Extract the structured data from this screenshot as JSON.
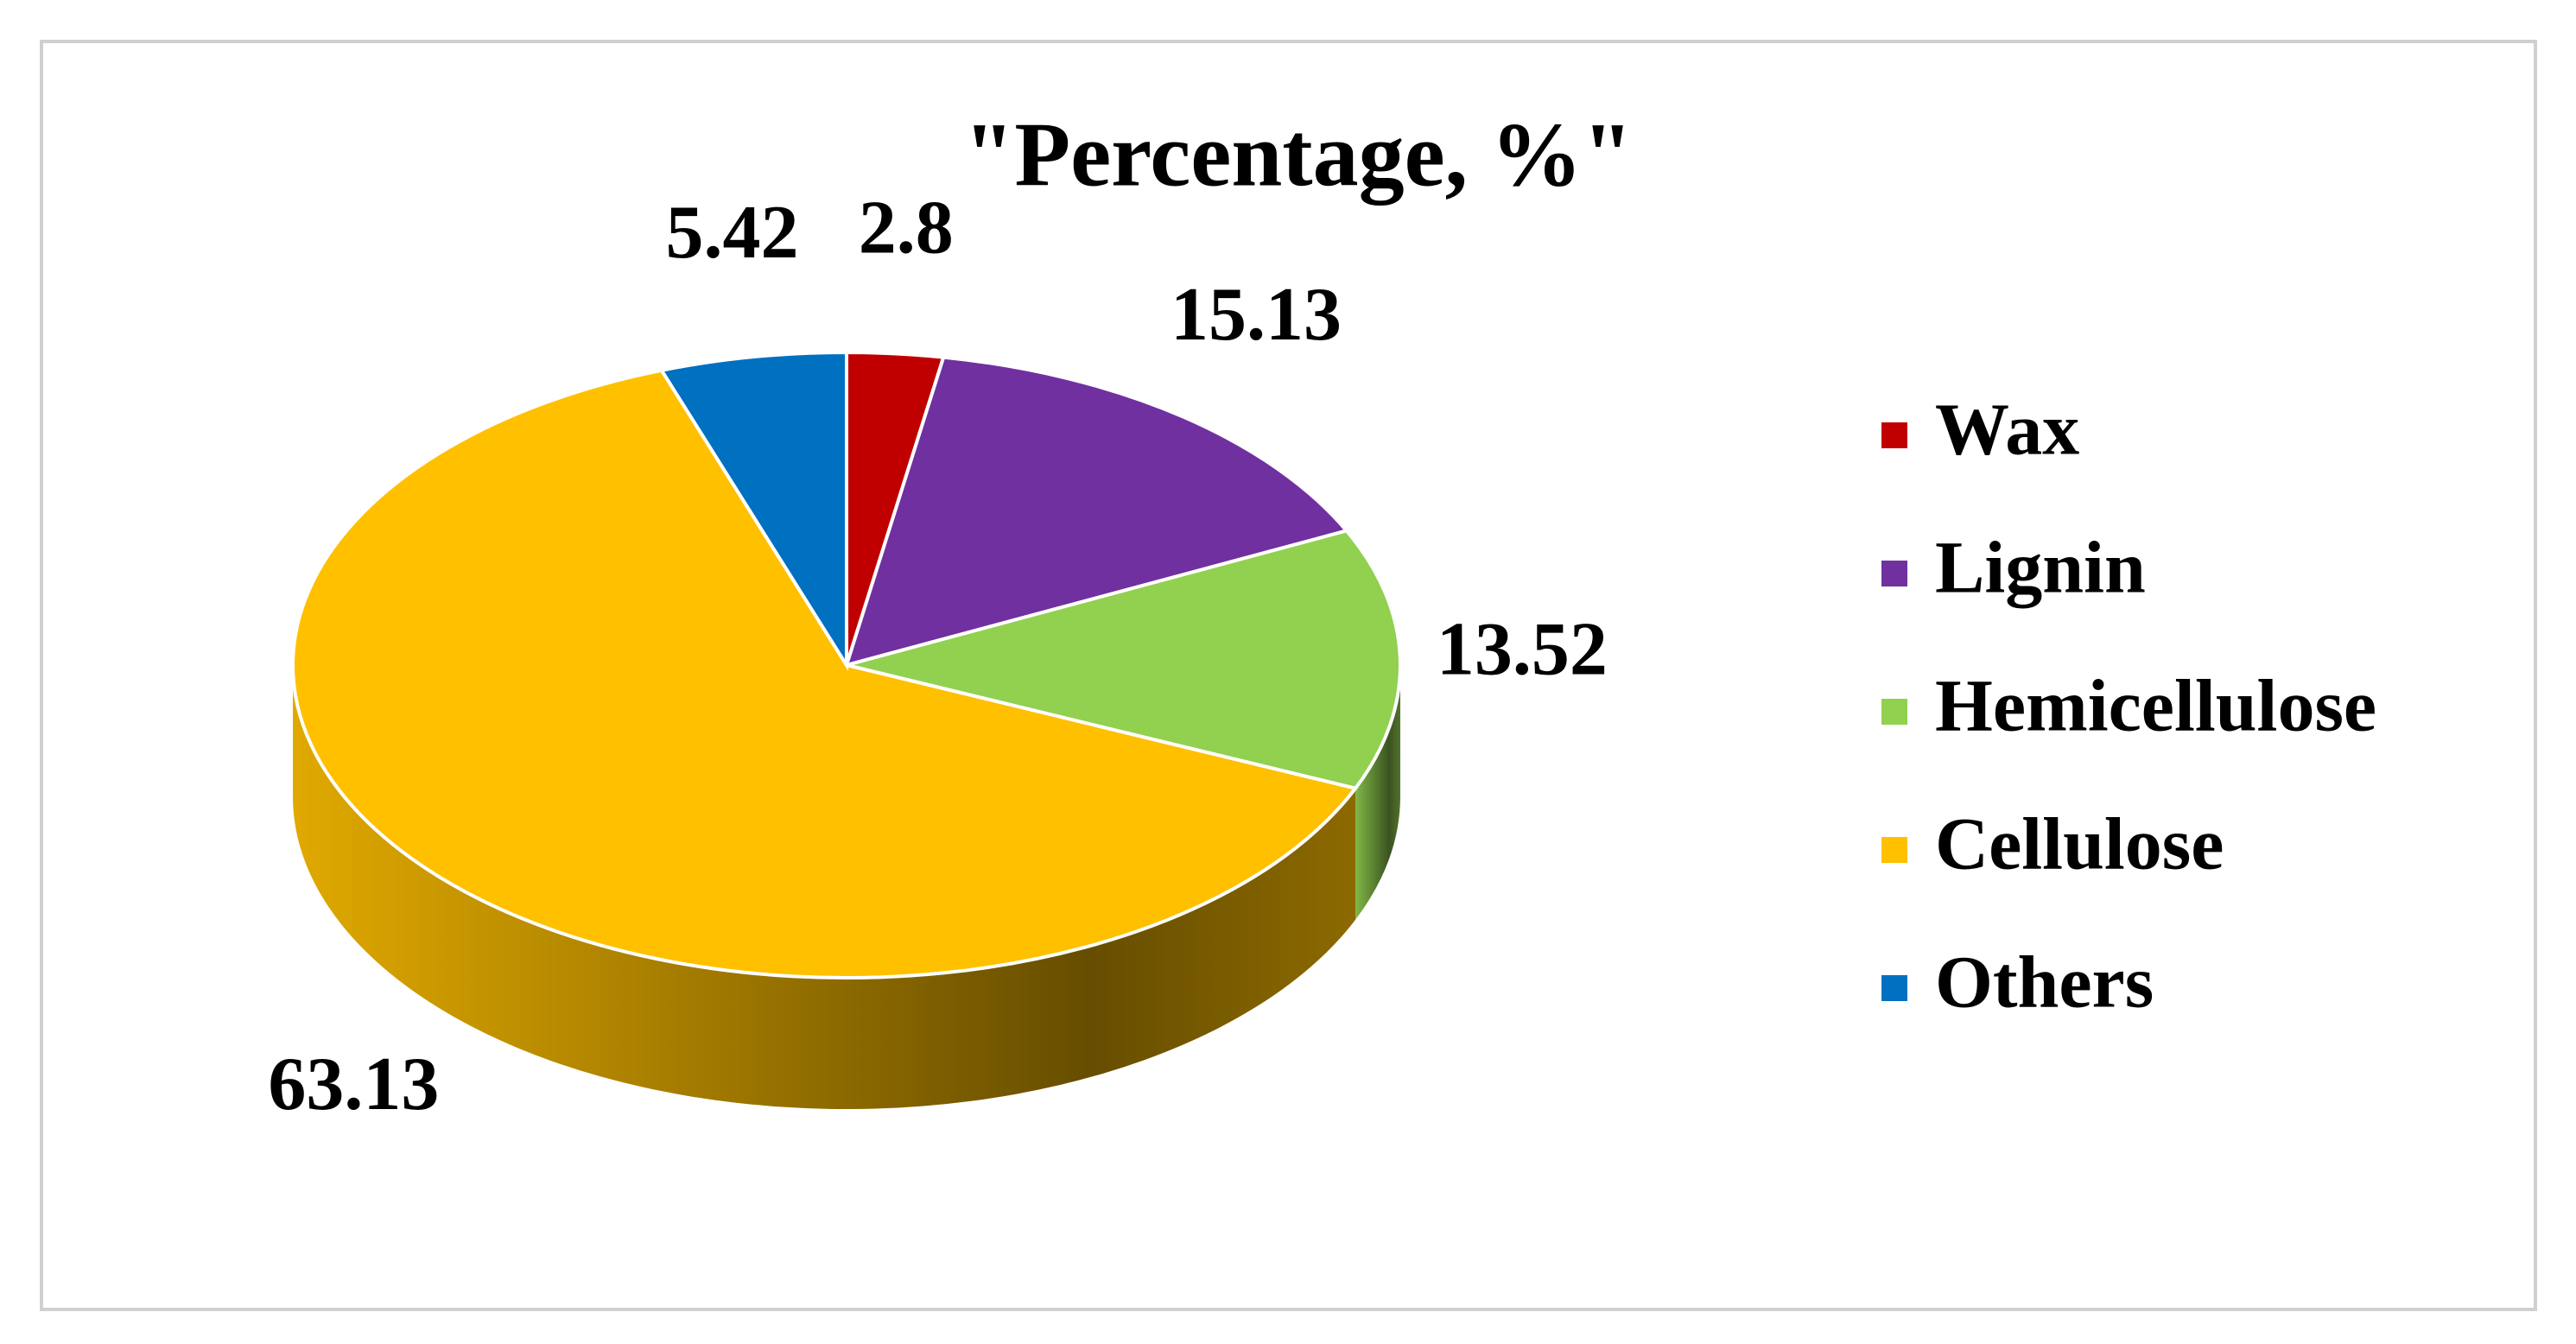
{
  "chart_data": {
    "type": "pie",
    "title": "\"Percentage, %\"",
    "categories": [
      "Wax",
      "Lignin",
      "Hemicellulose",
      "Cellulose",
      "Others"
    ],
    "values": [
      2.8,
      15.13,
      13.52,
      63.13,
      5.42
    ],
    "colors": [
      "#c00000",
      "#7030a0",
      "#92d050",
      "#ffc000",
      "#0070c0"
    ],
    "legend": "right"
  }
}
